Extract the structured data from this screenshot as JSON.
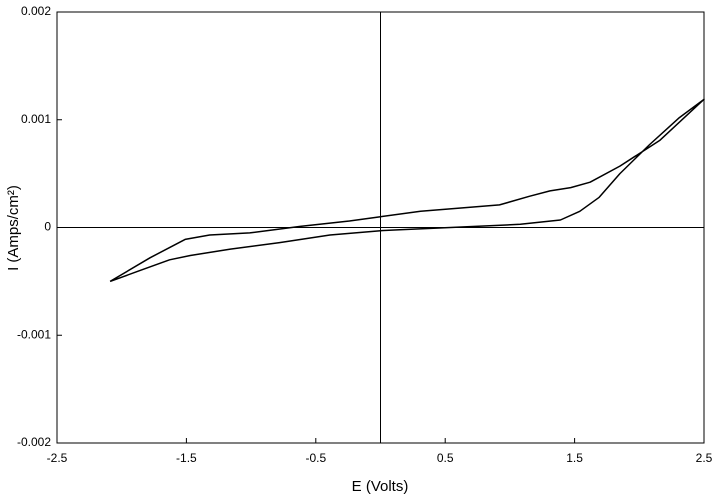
{
  "chart_data": {
    "type": "line",
    "x_label": "E (Volts)",
    "y_label": "I (Amps/cm²)",
    "x": [
      -2.09,
      -1.78,
      -1.51,
      -1.32,
      -1.01,
      -0.62,
      -0.24,
      0,
      0.31,
      0.61,
      0.92,
      1.15,
      1.31,
      1.47,
      1.62,
      1.85,
      2.16,
      2.5,
      2.31,
      2.08,
      1.85,
      1.69,
      1.54,
      1.39,
      1.08,
      0.54,
      0.15,
      0,
      -0.39,
      -0.78,
      -1.16,
      -1.47,
      -1.63,
      -1.86,
      -2.09
    ],
    "series": [
      {
        "color": "#000000",
        "values": [
          -0.0005,
          -0.00028,
          -0.00011,
          -7e-05,
          -5e-05,
          1e-05,
          6e-05,
          0.0001,
          0.00015,
          0.00018,
          0.00021,
          0.00029,
          0.00034,
          0.00037,
          0.00042,
          0.00057,
          0.00081,
          0.00119,
          0.00102,
          0.00077,
          0.0005,
          0.00028,
          0.00015,
          7e-05,
          3e-05,
          0,
          -2e-05,
          -3e-05,
          -7e-05,
          -0.00014,
          -0.0002,
          -0.00026,
          -0.0003,
          -0.0004,
          -0.0005
        ]
      }
    ],
    "xlim": [
      -2.5,
      2.5
    ],
    "xticks": [
      -2.5,
      -1.5,
      -0.5,
      0.5,
      1.5,
      2.5
    ],
    "ylim": [
      -0.002,
      0.002
    ],
    "yticks": [
      -0.002,
      -0.001,
      0,
      0.001,
      0.002
    ]
  }
}
